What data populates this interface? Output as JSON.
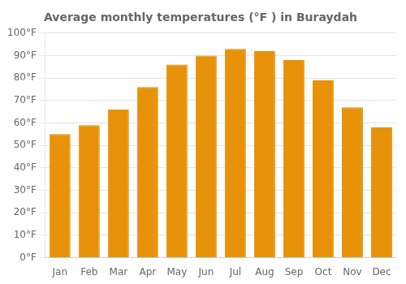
{
  "chart_data": {
    "type": "bar",
    "title": "Average monthly temperatures (°F ) in Buraydah",
    "categories": [
      "Jan",
      "Feb",
      "Mar",
      "Apr",
      "May",
      "Jun",
      "Jul",
      "Aug",
      "Sep",
      "Oct",
      "Nov",
      "Dec"
    ],
    "values": [
      55,
      59,
      66,
      76,
      86,
      90,
      93,
      92,
      88,
      79,
      67,
      58
    ],
    "color": "#E8920A",
    "ylim": [
      0,
      100
    ],
    "yticks": [
      {
        "value": 0,
        "label": "0°F"
      },
      {
        "value": 10,
        "label": "10°F"
      },
      {
        "value": 20,
        "label": "20°F"
      },
      {
        "value": 30,
        "label": "30°F"
      },
      {
        "value": 40,
        "label": "40°F"
      },
      {
        "value": 50,
        "label": "50°F"
      },
      {
        "value": 60,
        "label": "60°F"
      },
      {
        "value": 70,
        "label": "70°F"
      },
      {
        "value": 80,
        "label": "80°F"
      },
      {
        "value": 90,
        "label": "90°F"
      },
      {
        "value": 100,
        "label": "100°F"
      }
    ],
    "grid": true
  }
}
